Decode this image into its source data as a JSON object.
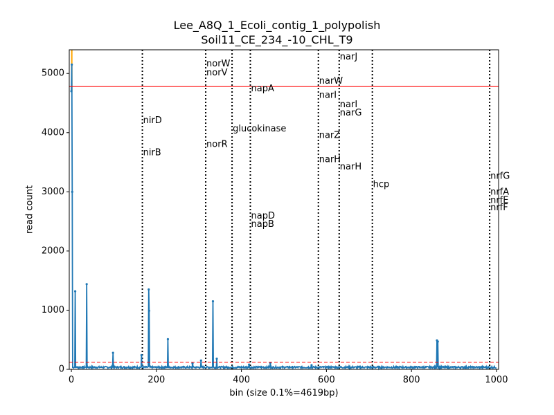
{
  "chart_data": {
    "type": "line",
    "title_line1": "Lee_A8Q_1_Ecoli_contig_1_polypolish",
    "title_line2": "Soil11_CE_234_-10_CHL_T9",
    "xlabel": "bin (size 0.1%=4619bp)",
    "ylabel": "read count",
    "xlim": [
      -5,
      1005
    ],
    "ylim": [
      0,
      5400
    ],
    "xticks": [
      0,
      200,
      400,
      600,
      800,
      1000
    ],
    "yticks": [
      0,
      1000,
      2000,
      3000,
      4000,
      5000
    ],
    "threshold_solid": 4780,
    "threshold_dashed": 120,
    "colors": {
      "series": "#1f77b4",
      "threshold_solid": "#ff0000",
      "threshold_dashed": "#ff0000",
      "highlight": "#ffa500",
      "gene_line": "#000000"
    },
    "baseline": 30,
    "peaks": [
      {
        "x": 0,
        "y": 4700
      },
      {
        "x": 1,
        "y": 5150
      },
      {
        "x": 2,
        "y": 3000
      },
      {
        "x": 9,
        "y": 1320
      },
      {
        "x": 36,
        "y": 1440
      },
      {
        "x": 98,
        "y": 280
      },
      {
        "x": 165,
        "y": 240
      },
      {
        "x": 182,
        "y": 1350
      },
      {
        "x": 183,
        "y": 990
      },
      {
        "x": 227,
        "y": 510
      },
      {
        "x": 285,
        "y": 100
      },
      {
        "x": 305,
        "y": 150
      },
      {
        "x": 333,
        "y": 1150
      },
      {
        "x": 342,
        "y": 180
      },
      {
        "x": 418,
        "y": 80
      },
      {
        "x": 468,
        "y": 110
      },
      {
        "x": 565,
        "y": 70
      },
      {
        "x": 860,
        "y": 490
      },
      {
        "x": 862,
        "y": 470
      }
    ],
    "highlight_x": 1,
    "gene_lines": [
      167,
      316,
      378,
      421,
      581,
      630,
      708,
      984
    ],
    "gene_labels": [
      {
        "text": "nirD",
        "x": 167,
        "y": 4200
      },
      {
        "text": "nirB",
        "x": 167,
        "y": 3660
      },
      {
        "text": "norW",
        "x": 316,
        "y": 5160
      },
      {
        "text": "norV",
        "x": 316,
        "y": 5010
      },
      {
        "text": "norR",
        "x": 316,
        "y": 3800
      },
      {
        "text": "glucokinase",
        "x": 378,
        "y": 4060
      },
      {
        "text": "napA",
        "x": 421,
        "y": 4740
      },
      {
        "text": "napD",
        "x": 421,
        "y": 2590
      },
      {
        "text": "napB",
        "x": 421,
        "y": 2450
      },
      {
        "text": "narW",
        "x": 581,
        "y": 4870
      },
      {
        "text": "narI",
        "x": 581,
        "y": 4630
      },
      {
        "text": "narZ",
        "x": 581,
        "y": 3950
      },
      {
        "text": "narH",
        "x": 581,
        "y": 3540
      },
      {
        "text": "narJ",
        "x": 630,
        "y": 5280
      },
      {
        "text": "narI",
        "x": 630,
        "y": 4470
      },
      {
        "text": "narG",
        "x": 630,
        "y": 4330
      },
      {
        "text": "narH",
        "x": 630,
        "y": 3420
      },
      {
        "text": "hcp",
        "x": 708,
        "y": 3120
      },
      {
        "text": "nrfG",
        "x": 984,
        "y": 3260
      },
      {
        "text": "nrfA",
        "x": 984,
        "y": 2990
      },
      {
        "text": "nrfE",
        "x": 984,
        "y": 2850
      },
      {
        "text": "nrfF",
        "x": 984,
        "y": 2730
      }
    ]
  }
}
